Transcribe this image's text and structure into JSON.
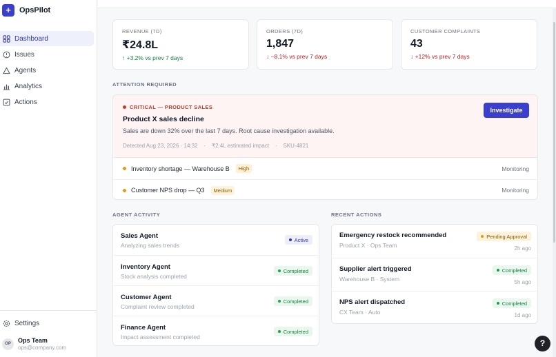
{
  "app": {
    "name": "OpsPilot",
    "logo_glyph": "+"
  },
  "sidebar": {
    "items": [
      {
        "label": "Dashboard",
        "icon": "grid-icon",
        "active": true
      },
      {
        "label": "Issues",
        "icon": "alert-circle-icon"
      },
      {
        "label": "Agents",
        "icon": "triangle-icon"
      },
      {
        "label": "Analytics",
        "icon": "bar-chart-icon"
      },
      {
        "label": "Actions",
        "icon": "checkbox-icon"
      }
    ],
    "settings_label": "Settings",
    "user": {
      "initials": "OP",
      "name": "Ops Team",
      "email": "ops@company.com"
    }
  },
  "metrics": [
    {
      "label": "REVENUE (7D)",
      "value": "₹24.8L",
      "arrow": "↑",
      "delta": "+3.2% vs prev 7 days",
      "trend": "up"
    },
    {
      "label": "ORDERS (7D)",
      "value": "1,847",
      "arrow": "↓",
      "delta": "−8.1% vs prev 7 days",
      "trend": "down"
    },
    {
      "label": "CUSTOMER COMPLAINTS",
      "value": "43",
      "arrow": "↓",
      "delta": "+12% vs prev 7 days",
      "trend": "down"
    }
  ],
  "attention": {
    "section_label": "ATTENTION REQUIRED",
    "critical": {
      "tag": "CRITICAL — PRODUCT SALES",
      "title": "Product X sales decline",
      "description": "Sales are down 32% over the last 7 days. Root cause investigation available.",
      "meta": "Detected Aug 23, 2026 · 14:32    ·    ₹2.4L estimated impact    ·    SKU-4821",
      "button": "Investigate"
    },
    "items": [
      {
        "text": "Inventory shortage — Warehouse B",
        "severity": "High",
        "status": "Monitoring"
      },
      {
        "text": "Customer NPS drop — Q3",
        "severity": "Medium",
        "status": "Monitoring"
      }
    ]
  },
  "agent_activity": {
    "section_label": "AGENT ACTIVITY",
    "rows": [
      {
        "name": "Sales Agent",
        "sub": "Analyzing sales trends",
        "status": "Active"
      },
      {
        "name": "Inventory Agent",
        "sub": "Stock analysis completed",
        "status": "Completed"
      },
      {
        "name": "Customer Agent",
        "sub": "Complaint review completed",
        "status": "Completed"
      },
      {
        "name": "Finance Agent",
        "sub": "Impact assessment completed",
        "status": "Completed"
      }
    ]
  },
  "recent_actions": {
    "section_label": "RECENT ACTIONS",
    "rows": [
      {
        "title": "Emergency restock recommended",
        "sub": "Product X · Ops Team",
        "status": "Pending Approval",
        "time": "2h ago"
      },
      {
        "title": "Supplier alert triggered",
        "sub": "Warehouse B · System",
        "status": "Completed",
        "time": "5h ago"
      },
      {
        "title": "NPS alert dispatched",
        "sub": "CX Team · Auto",
        "status": "Completed",
        "time": "1d ago"
      }
    ]
  },
  "help_label": "?",
  "colors": {
    "accent": "#3b3fce",
    "critical": "#c0392b",
    "success": "#15803d",
    "warning": "#d4a017"
  }
}
